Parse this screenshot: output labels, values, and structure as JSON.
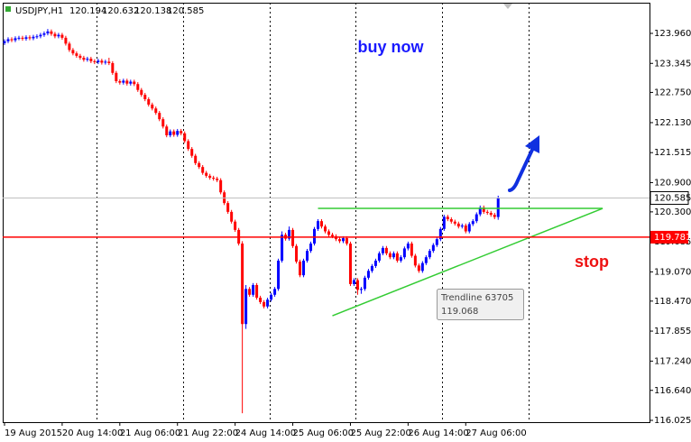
{
  "chart_data": {
    "type": "candlestick",
    "symbol": "USDJPY,H1",
    "up_color": "#0000ff",
    "down_color": "#ff0000",
    "xlim": [
      -0.5,
      179
    ],
    "ylim": [
      115.988,
      124.589
    ],
    "yticks": [
      {
        "value": 123.96,
        "label": "123.960"
      },
      {
        "value": 123.345,
        "label": "123.345"
      },
      {
        "value": 122.75,
        "label": "122.750"
      },
      {
        "value": 122.13,
        "label": "122.130"
      },
      {
        "value": 121.515,
        "label": "121.515"
      },
      {
        "value": 120.9,
        "label": "120.900"
      },
      {
        "value": 120.3,
        "label": "120.300"
      },
      {
        "value": 119.685,
        "label": "119.685"
      },
      {
        "value": 119.07,
        "label": "119.070"
      },
      {
        "value": 118.47,
        "label": "118.470"
      },
      {
        "value": 117.855,
        "label": "117.855"
      },
      {
        "value": 117.24,
        "label": "117.240"
      },
      {
        "value": 116.64,
        "label": "116.640"
      },
      {
        "value": 116.025,
        "label": "116.025"
      }
    ],
    "xticks": [
      {
        "value": 0,
        "label": "19 Aug 2015"
      },
      {
        "value": 16,
        "label": "20 Aug 14:00"
      },
      {
        "value": 32,
        "label": "21 Aug 06:00"
      },
      {
        "value": 48,
        "label": "21 Aug 22:00"
      },
      {
        "value": 64,
        "label": "24 Aug 14:00"
      },
      {
        "value": 80,
        "label": "25 Aug 06:00"
      },
      {
        "value": 96,
        "label": "25 Aug 22:00"
      },
      {
        "value": 112,
        "label": "26 Aug 14:00"
      },
      {
        "value": 128,
        "label": "27 Aug 06:00"
      }
    ],
    "xgrid": [
      25.5,
      49.5,
      73.5,
      97.5,
      121.5,
      145.5
    ],
    "stop_level": 119.781,
    "stop_color": "#ff0000",
    "trend_color": "#33cc33",
    "trendlines": [
      {
        "x": [
          87,
          166
        ],
        "y": [
          120.371,
          120.371
        ]
      },
      {
        "x": [
          91,
          166
        ],
        "y": [
          118.17,
          120.371
        ]
      }
    ],
    "annotations": {
      "buy": "buy now",
      "stop": "stop"
    },
    "tooltip": {
      "name": "Trendline 63705",
      "value": 119.068
    },
    "candles": [
      [
        123.76,
        123.84,
        123.72,
        123.8
      ],
      [
        123.8,
        123.88,
        123.76,
        123.84
      ],
      [
        123.84,
        123.88,
        123.78,
        123.82
      ],
      [
        123.82,
        123.9,
        123.78,
        123.86
      ],
      [
        123.86,
        123.91,
        123.82,
        123.87
      ],
      [
        123.87,
        123.91,
        123.81,
        123.85
      ],
      [
        123.85,
        123.92,
        123.81,
        123.88
      ],
      [
        123.88,
        123.92,
        123.82,
        123.86
      ],
      [
        123.86,
        123.93,
        123.82,
        123.89
      ],
      [
        123.89,
        123.94,
        123.85,
        123.9
      ],
      [
        123.9,
        123.97,
        123.86,
        123.93
      ],
      [
        123.93,
        124.0,
        123.89,
        123.96
      ],
      [
        123.96,
        124.05,
        123.92,
        124.0
      ],
      [
        124.0,
        124.04,
        123.91,
        123.95
      ],
      [
        123.95,
        123.99,
        123.86,
        123.9
      ],
      [
        123.9,
        123.97,
        123.86,
        123.93
      ],
      [
        123.93,
        123.97,
        123.83,
        123.87
      ],
      [
        123.87,
        123.91,
        123.71,
        123.75
      ],
      [
        123.75,
        123.79,
        123.58,
        123.62
      ],
      [
        123.62,
        123.66,
        123.51,
        123.55
      ],
      [
        123.55,
        123.59,
        123.46,
        123.5
      ],
      [
        123.5,
        123.54,
        123.42,
        123.46
      ],
      [
        123.46,
        123.5,
        123.38,
        123.42
      ],
      [
        123.42,
        123.48,
        123.38,
        123.44
      ],
      [
        123.44,
        123.48,
        123.35,
        123.39
      ],
      [
        123.39,
        123.43,
        123.33,
        123.37
      ],
      [
        123.37,
        123.44,
        123.33,
        123.4
      ],
      [
        123.4,
        123.44,
        123.32,
        123.36
      ],
      [
        123.36,
        123.42,
        123.32,
        123.38
      ],
      [
        123.38,
        123.46,
        123.31,
        123.35
      ],
      [
        123.35,
        123.39,
        123.11,
        123.15
      ],
      [
        123.15,
        123.19,
        122.94,
        122.98
      ],
      [
        122.98,
        123.02,
        122.91,
        122.95
      ],
      [
        122.95,
        123.03,
        122.91,
        122.99
      ],
      [
        122.99,
        123.03,
        122.89,
        122.93
      ],
      [
        122.93,
        123.01,
        122.89,
        122.97
      ],
      [
        122.97,
        123.01,
        122.88,
        122.92
      ],
      [
        122.92,
        122.96,
        122.76,
        122.8
      ],
      [
        122.8,
        122.84,
        122.66,
        122.7
      ],
      [
        122.7,
        122.74,
        122.57,
        122.61
      ],
      [
        122.61,
        122.65,
        122.46,
        122.5
      ],
      [
        122.5,
        122.54,
        122.38,
        122.42
      ],
      [
        122.42,
        122.46,
        122.29,
        122.33
      ],
      [
        122.33,
        122.37,
        122.16,
        122.2
      ],
      [
        122.2,
        122.24,
        122.01,
        122.05
      ],
      [
        122.05,
        122.09,
        121.83,
        121.87
      ],
      [
        121.87,
        121.99,
        121.83,
        121.95
      ],
      [
        121.95,
        121.99,
        121.84,
        121.88
      ],
      [
        121.88,
        122.0,
        121.84,
        121.96
      ],
      [
        121.96,
        122.0,
        121.87,
        121.91
      ],
      [
        121.91,
        121.95,
        121.71,
        121.75
      ],
      [
        121.75,
        121.79,
        121.55,
        121.59
      ],
      [
        121.59,
        121.63,
        121.41,
        121.45
      ],
      [
        121.45,
        121.49,
        121.26,
        121.3
      ],
      [
        121.3,
        121.34,
        121.18,
        121.22
      ],
      [
        121.22,
        121.26,
        121.06,
        121.1
      ],
      [
        121.1,
        121.14,
        121.0,
        121.04
      ],
      [
        121.04,
        121.08,
        120.96,
        121.0
      ],
      [
        121.0,
        121.04,
        120.94,
        120.98
      ],
      [
        120.98,
        121.02,
        120.91,
        120.95
      ],
      [
        120.95,
        120.99,
        120.66,
        120.7
      ],
      [
        120.7,
        120.74,
        120.44,
        120.48
      ],
      [
        120.48,
        120.52,
        120.26,
        120.3
      ],
      [
        120.3,
        120.34,
        120.06,
        120.1
      ],
      [
        120.1,
        120.14,
        119.89,
        119.93
      ],
      [
        119.93,
        119.97,
        119.61,
        119.65
      ],
      [
        119.65,
        119.7,
        116.17,
        118.0
      ],
      [
        118.0,
        118.8,
        117.9,
        118.72
      ],
      [
        118.72,
        118.76,
        118.56,
        118.6
      ],
      [
        118.6,
        118.84,
        118.56,
        118.8
      ],
      [
        118.8,
        118.84,
        118.5,
        118.54
      ],
      [
        118.54,
        118.58,
        118.41,
        118.45
      ],
      [
        118.45,
        118.49,
        118.32,
        118.36
      ],
      [
        118.36,
        118.54,
        118.32,
        118.5
      ],
      [
        118.5,
        118.64,
        118.46,
        118.6
      ],
      [
        118.6,
        118.76,
        118.56,
        118.72
      ],
      [
        118.72,
        119.34,
        118.68,
        119.3
      ],
      [
        119.3,
        119.9,
        119.26,
        119.83
      ],
      [
        119.83,
        119.87,
        119.71,
        119.75
      ],
      [
        119.75,
        120.0,
        119.71,
        119.93
      ],
      [
        119.93,
        119.97,
        119.56,
        119.6
      ],
      [
        119.6,
        119.64,
        119.24,
        119.28
      ],
      [
        119.28,
        119.32,
        118.96,
        119.0
      ],
      [
        119.0,
        119.34,
        118.96,
        119.3
      ],
      [
        119.3,
        119.54,
        119.26,
        119.5
      ],
      [
        119.5,
        119.69,
        119.46,
        119.65
      ],
      [
        119.65,
        119.99,
        119.61,
        119.95
      ],
      [
        119.95,
        120.15,
        119.91,
        120.11
      ],
      [
        120.11,
        120.15,
        119.96,
        120.0
      ],
      [
        120.0,
        120.04,
        119.86,
        119.9
      ],
      [
        119.9,
        119.94,
        119.79,
        119.83
      ],
      [
        119.83,
        119.87,
        119.76,
        119.8
      ],
      [
        119.8,
        119.84,
        119.7,
        119.74
      ],
      [
        119.74,
        119.78,
        119.66,
        119.7
      ],
      [
        119.7,
        119.8,
        119.66,
        119.76
      ],
      [
        119.76,
        119.8,
        119.61,
        119.65
      ],
      [
        119.65,
        119.69,
        118.78,
        118.82
      ],
      [
        118.82,
        118.94,
        118.78,
        118.9
      ],
      [
        118.9,
        118.94,
        118.6,
        118.7
      ],
      [
        118.7,
        118.76,
        118.62,
        118.72
      ],
      [
        118.72,
        118.99,
        118.68,
        118.95
      ],
      [
        118.95,
        119.13,
        118.91,
        119.09
      ],
      [
        119.09,
        119.23,
        119.05,
        119.19
      ],
      [
        119.19,
        119.34,
        119.15,
        119.3
      ],
      [
        119.3,
        119.49,
        119.26,
        119.45
      ],
      [
        119.45,
        119.6,
        119.41,
        119.56
      ],
      [
        119.56,
        119.6,
        119.41,
        119.45
      ],
      [
        119.45,
        119.49,
        119.33,
        119.37
      ],
      [
        119.37,
        119.49,
        119.33,
        119.45
      ],
      [
        119.45,
        119.49,
        119.26,
        119.3
      ],
      [
        119.3,
        119.41,
        119.26,
        119.37
      ],
      [
        119.37,
        119.59,
        119.33,
        119.55
      ],
      [
        119.55,
        119.69,
        119.51,
        119.65
      ],
      [
        119.65,
        119.69,
        119.36,
        119.4
      ],
      [
        119.4,
        119.44,
        119.16,
        119.2
      ],
      [
        119.2,
        119.24,
        119.05,
        119.09
      ],
      [
        119.09,
        119.29,
        119.05,
        119.25
      ],
      [
        119.25,
        119.41,
        119.21,
        119.37
      ],
      [
        119.37,
        119.54,
        119.33,
        119.5
      ],
      [
        119.5,
        119.66,
        119.46,
        119.62
      ],
      [
        119.62,
        119.78,
        119.58,
        119.74
      ],
      [
        119.74,
        119.99,
        119.7,
        119.95
      ],
      [
        119.95,
        120.24,
        119.91,
        120.2
      ],
      [
        120.2,
        120.24,
        120.11,
        120.15
      ],
      [
        120.15,
        120.19,
        120.06,
        120.1
      ],
      [
        120.1,
        120.14,
        120.02,
        120.06
      ],
      [
        120.06,
        120.1,
        119.96,
        120.0
      ],
      [
        120.0,
        120.06,
        119.96,
        120.02
      ],
      [
        120.02,
        120.06,
        119.86,
        119.9
      ],
      [
        119.9,
        120.09,
        119.86,
        120.05
      ],
      [
        120.05,
        120.15,
        120.01,
        120.11
      ],
      [
        120.11,
        120.29,
        120.07,
        120.25
      ],
      [
        120.25,
        120.43,
        120.21,
        120.39
      ],
      [
        120.39,
        120.43,
        120.26,
        120.3
      ],
      [
        120.3,
        120.34,
        120.24,
        120.28
      ],
      [
        120.28,
        120.32,
        120.2,
        120.24
      ],
      [
        120.24,
        120.28,
        120.15,
        120.194
      ],
      [
        120.194,
        120.632,
        120.138,
        120.585
      ]
    ]
  }
}
